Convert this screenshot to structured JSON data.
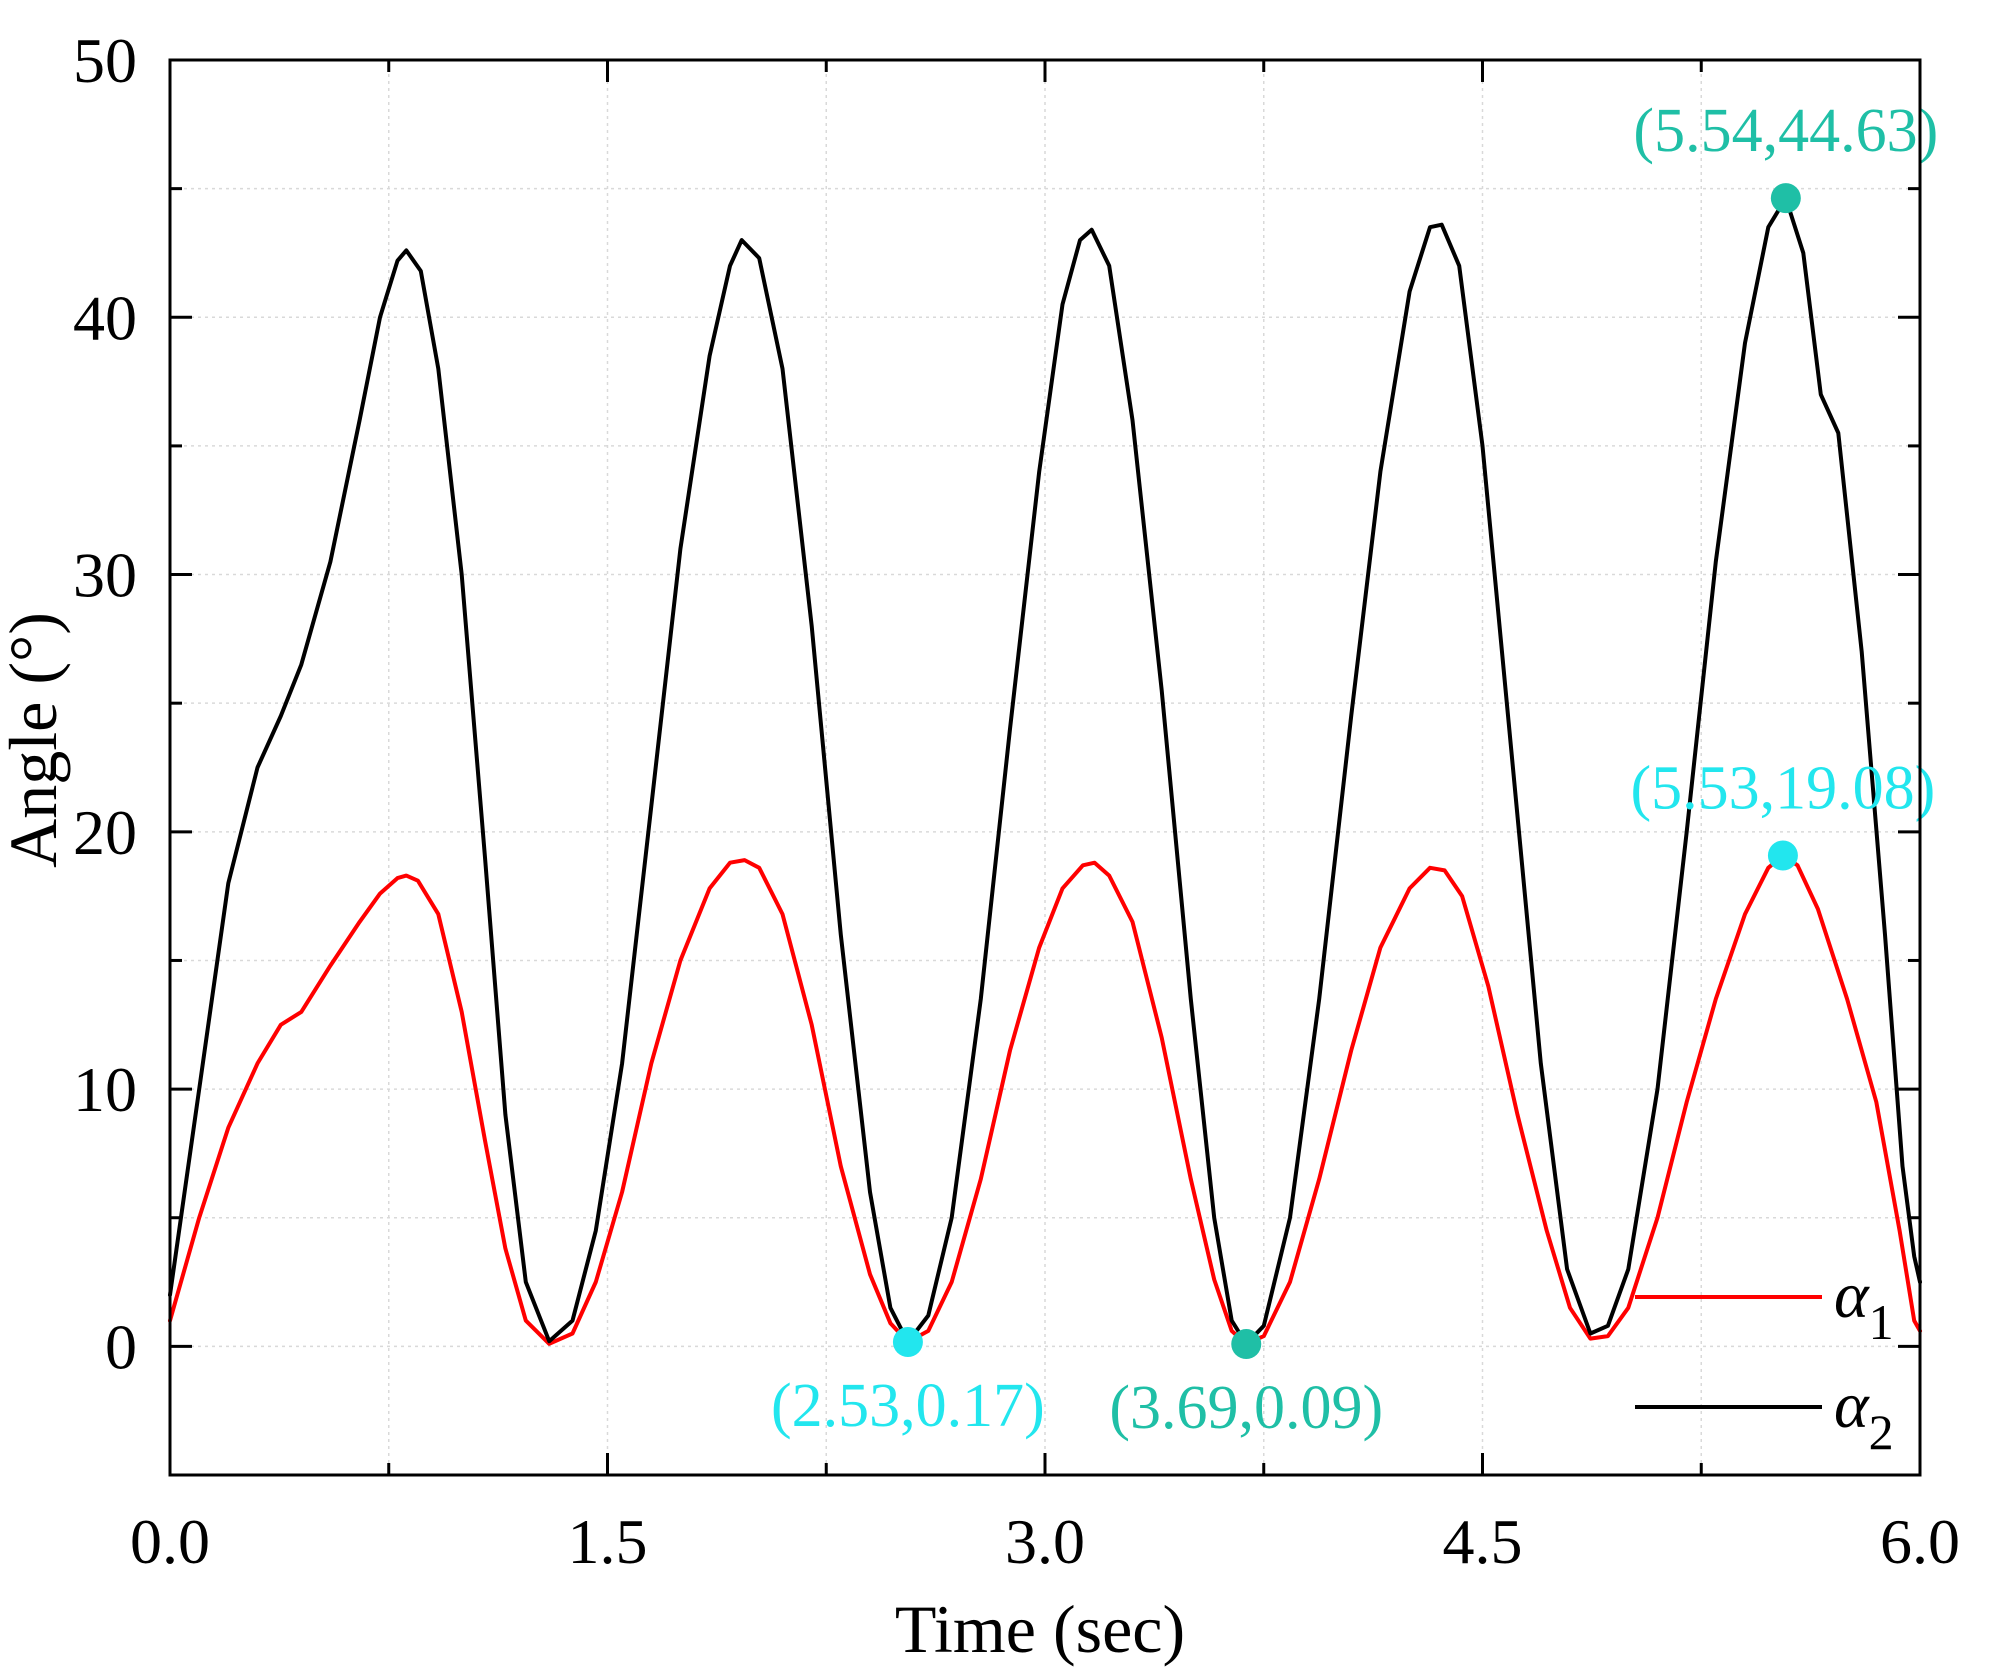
{
  "chart_data": {
    "type": "line",
    "title": "",
    "xlabel": "Time (sec)",
    "ylabel": "Angle (°)",
    "xlim": [
      0,
      6
    ],
    "ylim": [
      -5,
      50
    ],
    "xticks": [
      0,
      1.5,
      3,
      4.5,
      6
    ],
    "xtick_labels": [
      "0.0",
      "1.5",
      "3.0",
      "4.5",
      "6.0"
    ],
    "yticks": [
      0,
      10,
      20,
      30,
      40,
      50
    ],
    "ytick_labels": [
      "0",
      "10",
      "20",
      "30",
      "40",
      "50"
    ],
    "grid": true,
    "legend": {
      "position": "bottom-right"
    },
    "series": [
      {
        "name": "α1",
        "legend_base": "α",
        "legend_sub": "1",
        "color": "#ff0000",
        "points": [
          [
            0.0,
            1.0
          ],
          [
            0.1,
            5.0
          ],
          [
            0.2,
            8.5
          ],
          [
            0.3,
            11.0
          ],
          [
            0.38,
            12.5
          ],
          [
            0.45,
            13.0
          ],
          [
            0.55,
            14.8
          ],
          [
            0.65,
            16.5
          ],
          [
            0.72,
            17.6
          ],
          [
            0.78,
            18.2
          ],
          [
            0.81,
            18.3
          ],
          [
            0.85,
            18.1
          ],
          [
            0.92,
            16.8
          ],
          [
            1.0,
            13.0
          ],
          [
            1.08,
            8.0
          ],
          [
            1.15,
            3.8
          ],
          [
            1.22,
            1.0
          ],
          [
            1.3,
            0.1
          ],
          [
            1.38,
            0.5
          ],
          [
            1.46,
            2.5
          ],
          [
            1.55,
            6.0
          ],
          [
            1.65,
            11.0
          ],
          [
            1.75,
            15.0
          ],
          [
            1.85,
            17.8
          ],
          [
            1.92,
            18.8
          ],
          [
            1.97,
            18.9
          ],
          [
            2.02,
            18.6
          ],
          [
            2.1,
            16.8
          ],
          [
            2.2,
            12.5
          ],
          [
            2.3,
            7.0
          ],
          [
            2.4,
            2.8
          ],
          [
            2.47,
            0.9
          ],
          [
            2.53,
            0.17
          ],
          [
            2.6,
            0.6
          ],
          [
            2.68,
            2.5
          ],
          [
            2.78,
            6.5
          ],
          [
            2.88,
            11.5
          ],
          [
            2.98,
            15.5
          ],
          [
            3.06,
            17.8
          ],
          [
            3.13,
            18.7
          ],
          [
            3.17,
            18.8
          ],
          [
            3.22,
            18.3
          ],
          [
            3.3,
            16.5
          ],
          [
            3.4,
            12.0
          ],
          [
            3.5,
            6.5
          ],
          [
            3.58,
            2.6
          ],
          [
            3.64,
            0.6
          ],
          [
            3.69,
            0.09
          ],
          [
            3.75,
            0.4
          ],
          [
            3.84,
            2.5
          ],
          [
            3.94,
            6.5
          ],
          [
            4.05,
            11.5
          ],
          [
            4.15,
            15.5
          ],
          [
            4.25,
            17.8
          ],
          [
            4.32,
            18.6
          ],
          [
            4.37,
            18.5
          ],
          [
            4.43,
            17.5
          ],
          [
            4.52,
            14.0
          ],
          [
            4.62,
            9.0
          ],
          [
            4.72,
            4.5
          ],
          [
            4.8,
            1.5
          ],
          [
            4.87,
            0.3
          ],
          [
            4.93,
            0.4
          ],
          [
            5.0,
            1.5
          ],
          [
            5.1,
            5.0
          ],
          [
            5.2,
            9.5
          ],
          [
            5.3,
            13.5
          ],
          [
            5.4,
            16.8
          ],
          [
            5.48,
            18.6
          ],
          [
            5.53,
            19.08
          ],
          [
            5.58,
            18.7
          ],
          [
            5.65,
            17.0
          ],
          [
            5.75,
            13.5
          ],
          [
            5.85,
            9.5
          ],
          [
            5.93,
            4.5
          ],
          [
            5.98,
            1.0
          ],
          [
            6.0,
            0.6
          ]
        ]
      },
      {
        "name": "α2",
        "legend_base": "α",
        "legend_sub": "2",
        "color": "#000000",
        "points": [
          [
            0.0,
            2.0
          ],
          [
            0.1,
            10.0
          ],
          [
            0.2,
            18.0
          ],
          [
            0.3,
            22.5
          ],
          [
            0.38,
            24.5
          ],
          [
            0.45,
            26.5
          ],
          [
            0.55,
            30.5
          ],
          [
            0.65,
            36.0
          ],
          [
            0.72,
            40.0
          ],
          [
            0.78,
            42.2
          ],
          [
            0.81,
            42.6
          ],
          [
            0.86,
            41.8
          ],
          [
            0.92,
            38.0
          ],
          [
            1.0,
            30.0
          ],
          [
            1.08,
            19.0
          ],
          [
            1.15,
            9.0
          ],
          [
            1.22,
            2.5
          ],
          [
            1.3,
            0.2
          ],
          [
            1.38,
            1.0
          ],
          [
            1.46,
            4.5
          ],
          [
            1.55,
            11.0
          ],
          [
            1.65,
            21.0
          ],
          [
            1.75,
            31.0
          ],
          [
            1.85,
            38.5
          ],
          [
            1.92,
            42.0
          ],
          [
            1.96,
            43.0
          ],
          [
            2.02,
            42.3
          ],
          [
            2.1,
            38.0
          ],
          [
            2.2,
            28.0
          ],
          [
            2.3,
            16.0
          ],
          [
            2.4,
            6.0
          ],
          [
            2.47,
            1.5
          ],
          [
            2.53,
            0.17
          ],
          [
            2.6,
            1.2
          ],
          [
            2.68,
            5.0
          ],
          [
            2.78,
            13.5
          ],
          [
            2.88,
            24.0
          ],
          [
            2.98,
            34.0
          ],
          [
            3.06,
            40.5
          ],
          [
            3.12,
            43.0
          ],
          [
            3.16,
            43.4
          ],
          [
            3.22,
            42.0
          ],
          [
            3.3,
            36.0
          ],
          [
            3.4,
            25.5
          ],
          [
            3.5,
            13.5
          ],
          [
            3.58,
            5.0
          ],
          [
            3.64,
            1.0
          ],
          [
            3.69,
            0.09
          ],
          [
            3.75,
            0.8
          ],
          [
            3.84,
            5.0
          ],
          [
            3.94,
            13.5
          ],
          [
            4.05,
            24.5
          ],
          [
            4.15,
            34.0
          ],
          [
            4.25,
            41.0
          ],
          [
            4.32,
            43.5
          ],
          [
            4.36,
            43.6
          ],
          [
            4.42,
            42.0
          ],
          [
            4.5,
            35.0
          ],
          [
            4.6,
            23.0
          ],
          [
            4.7,
            11.0
          ],
          [
            4.79,
            3.0
          ],
          [
            4.87,
            0.5
          ],
          [
            4.93,
            0.8
          ],
          [
            5.0,
            3.0
          ],
          [
            5.1,
            10.0
          ],
          [
            5.2,
            20.0
          ],
          [
            5.3,
            30.5
          ],
          [
            5.4,
            39.0
          ],
          [
            5.48,
            43.5
          ],
          [
            5.54,
            44.63
          ],
          [
            5.6,
            42.5
          ],
          [
            5.66,
            37.0
          ],
          [
            5.72,
            35.5
          ],
          [
            5.8,
            27.0
          ],
          [
            5.88,
            16.0
          ],
          [
            5.94,
            7.0
          ],
          [
            5.98,
            3.5
          ],
          [
            6.0,
            2.5
          ]
        ]
      }
    ],
    "annotations": [
      {
        "label": "(5.54,44.63)",
        "x": 5.54,
        "y": 44.63,
        "color": "#1fbfa6",
        "text_color": "#1fbfa6",
        "text_anchor": "above"
      },
      {
        "label": "(5.53,19.08)",
        "x": 5.53,
        "y": 19.08,
        "color": "#22e6ee",
        "text_color": "#22e6ee",
        "text_anchor": "above"
      },
      {
        "label": "(2.53,0.17)",
        "x": 2.53,
        "y": 0.17,
        "color": "#22e6ee",
        "text_color": "#22e6ee",
        "text_anchor": "below"
      },
      {
        "label": "(3.69,0.09)",
        "x": 3.69,
        "y": 0.09,
        "color": "#1fbfa6",
        "text_color": "#1fbfa6",
        "text_anchor": "below"
      }
    ]
  }
}
